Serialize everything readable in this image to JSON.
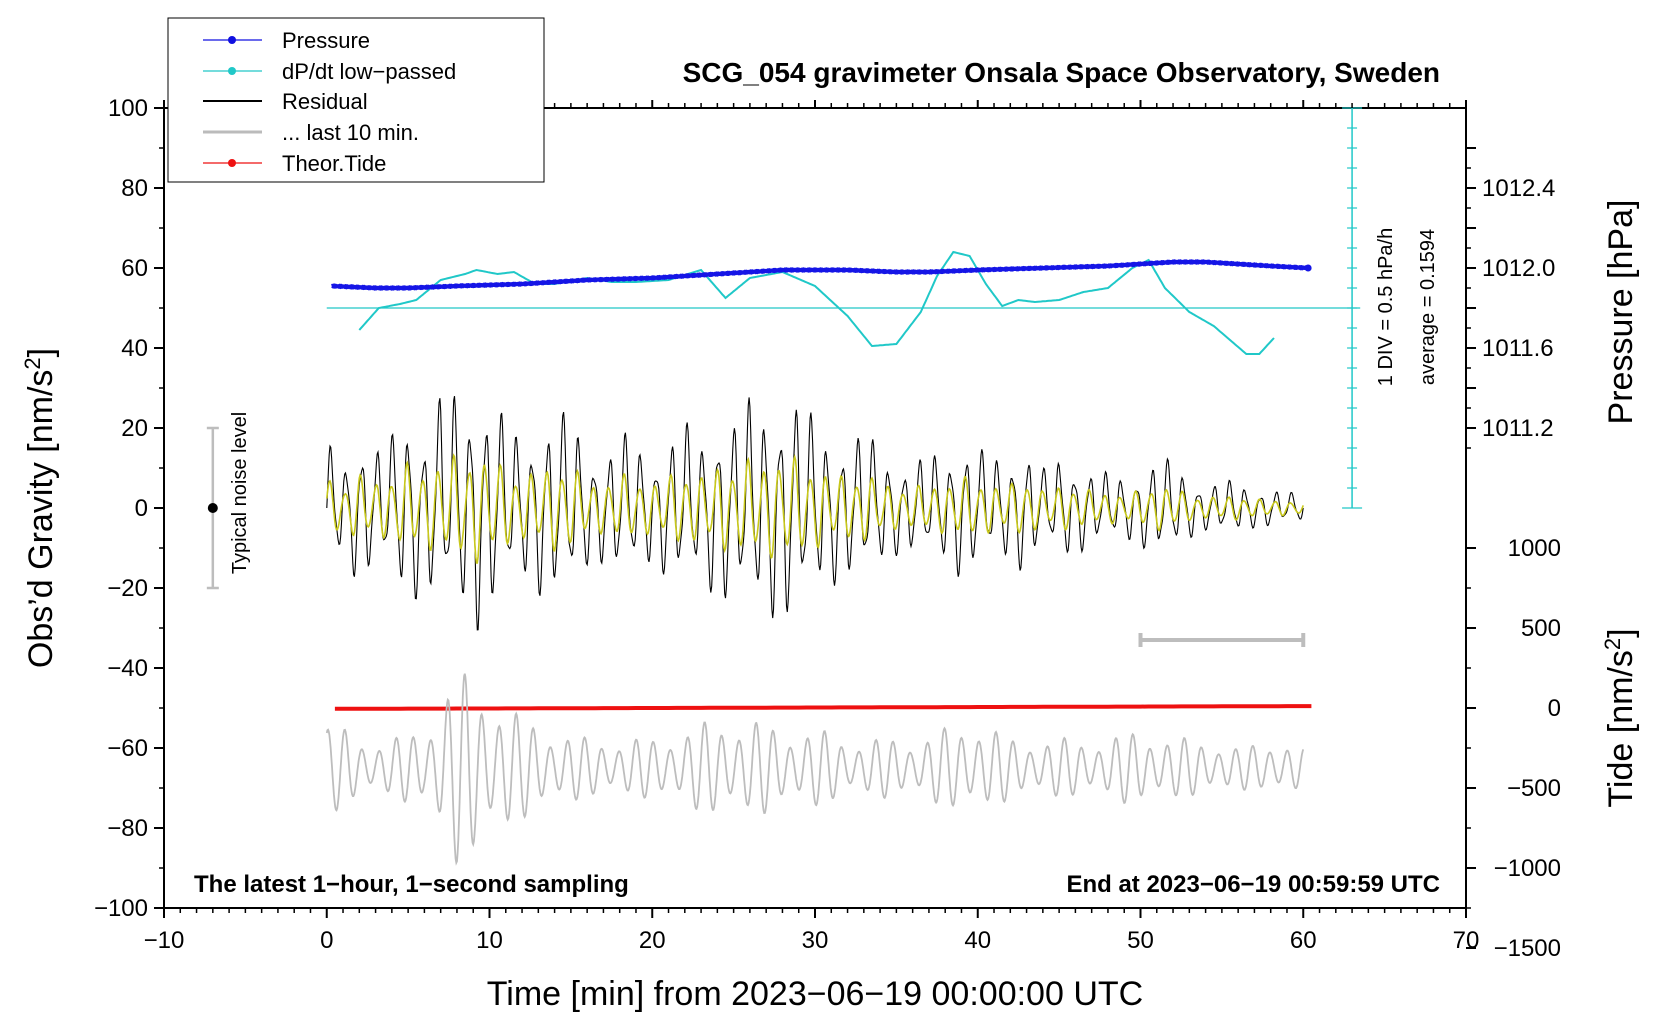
{
  "chart_data": {
    "type": "line",
    "title": "SCG_054 gravimeter Onsala Space Observatory, Sweden",
    "xlabel": "Time [min] from 2023−06−19 00:00:00 UTC",
    "xlim": [
      -10,
      70
    ],
    "x_ticks": [
      "−10",
      "0",
      "10",
      "20",
      "30",
      "40",
      "50",
      "60",
      "70"
    ],
    "left_axis": {
      "label_main": "Obs’d Gravity [nm/s",
      "label_sup": "2",
      "label_end": "]",
      "ylim": [
        -100,
        100
      ],
      "ticks": [
        "100",
        "80",
        "60",
        "40",
        "20",
        "0",
        "−20",
        "−40",
        "−60",
        "−80",
        "−100"
      ]
    },
    "pressure_axis": {
      "label": "Pressure [hPa]",
      "ticks": [
        "1012.4",
        "1012.0",
        "1011.6",
        "1011.2"
      ]
    },
    "tide_axis": {
      "label_main": "Tide [nm/s",
      "label_sup": "2",
      "label_end": "]",
      "ticks": [
        "1000",
        "500",
        "0",
        "−500",
        "−1000",
        "−1500"
      ]
    },
    "legend": {
      "position": "top-left",
      "entries": [
        "Pressure",
        "dP/dt low−passed",
        "Residual",
        "... last 10 min.",
        "Theor.Tide"
      ]
    },
    "annotations": {
      "noise_label": "Typical noise level",
      "noise_range": [
        -20,
        20
      ],
      "dpdt_scale": "1 DIV = 0.5 hPa/h",
      "dpdt_average": "average = 0.1594",
      "bottom_left": "The latest 1−hour, 1−second sampling",
      "bottom_right": "End at 2023−06−19 00:59:59 UTC"
    },
    "series": [
      {
        "name": "Pressure",
        "unit": "hPa",
        "x": [
          0.3,
          3,
          5,
          8,
          12,
          16,
          20,
          24,
          28,
          32,
          35,
          37,
          40,
          44,
          48,
          50,
          52,
          54,
          56,
          58,
          60.3
        ],
        "values": [
          1011.91,
          1011.9,
          1011.9,
          1011.91,
          1011.92,
          1011.94,
          1011.95,
          1011.97,
          1011.99,
          1011.99,
          1011.98,
          1011.98,
          1011.99,
          1012.0,
          1012.01,
          1012.02,
          1012.03,
          1012.03,
          1012.02,
          1012.01,
          1012.0
        ]
      },
      {
        "name": "dP/dt low−passed",
        "unit": "gravity-axis units (1 DIV = 0.5 hPa/h)",
        "baseline": 50,
        "x": [
          2,
          3.2,
          4.5,
          5.5,
          7,
          8.5,
          9.2,
          10.5,
          11.5,
          12.8,
          14,
          16,
          17.5,
          19,
          21,
          23,
          24.5,
          26,
          28,
          30,
          32,
          33.5,
          35,
          36.5,
          37.5,
          38.5,
          39.5,
          40.5,
          41.5,
          42.5,
          43.5,
          45,
          46.5,
          48,
          49.5,
          50.5,
          51.5,
          53,
          54.5,
          55.5,
          56.5,
          57.3,
          58.2
        ],
        "values": [
          44.5,
          50,
          51,
          52,
          57,
          58.5,
          59.5,
          58.5,
          59,
          56,
          56,
          57.5,
          56.5,
          56.5,
          57,
          59.5,
          52.5,
          57.5,
          59,
          55.5,
          48,
          40.5,
          41,
          49,
          58,
          64,
          63,
          56,
          50.5,
          52,
          51.5,
          52,
          54,
          55,
          60,
          62,
          55,
          49,
          45.5,
          42,
          38.5,
          38.5,
          42.5
        ]
      },
      {
        "name": "Residual",
        "unit": "nm/s2",
        "x": [
          0,
          1,
          2,
          3,
          4,
          5,
          6,
          7,
          7.5,
          8,
          8.5,
          9,
          9.5,
          10,
          11,
          12,
          13,
          14,
          15,
          16,
          17,
          18,
          19,
          20,
          21,
          22,
          23,
          24,
          25,
          26,
          27,
          28,
          29,
          30,
          31,
          32,
          33,
          34,
          35,
          36,
          37,
          38,
          39,
          40,
          41,
          42,
          43,
          44,
          45,
          46,
          47,
          48,
          49,
          50,
          51,
          52,
          53,
          54,
          55,
          56,
          57,
          58,
          59,
          60
        ],
        "values": [
          17,
          12,
          20,
          15,
          19,
          26,
          20,
          30,
          24,
          33,
          25,
          35,
          28,
          30,
          23,
          18,
          22,
          25,
          24,
          16,
          14,
          20,
          17,
          14,
          19,
          22,
          18,
          25,
          24,
          28,
          27,
          30,
          28,
          23,
          20,
          18,
          20,
          16,
          12,
          12,
          14,
          14,
          18,
          16,
          13,
          14,
          17,
          10,
          13,
          12,
          10,
          9,
          8,
          10,
          13,
          12,
          8,
          6,
          7,
          7,
          5,
          5,
          4,
          4
        ],
        "envelope_note": "values are approximate peak amplitudes of a roughly symmetric oscillation about 0"
      },
      {
        "name": "... last 10 min.",
        "unit": "nm/s2 (offset display, centred near −65)",
        "x": [
          0,
          2,
          4,
          6,
          7,
          8,
          9,
          10,
          11,
          12,
          14,
          16,
          18,
          20,
          22,
          24,
          26,
          28,
          30,
          32,
          34,
          36,
          38,
          40,
          42,
          44,
          46,
          48,
          50,
          52,
          54,
          56,
          58,
          60
        ],
        "values": [
          5,
          3,
          3,
          4,
          8,
          10,
          9,
          8,
          7,
          5,
          4,
          3,
          3,
          3,
          4,
          5,
          5,
          4,
          4,
          3,
          3,
          3,
          4,
          5,
          3,
          3,
          3,
          3,
          4,
          3,
          3,
          2,
          3,
          2
        ],
        "envelope_note": "values are approximate peak amplitudes (in 2.5 nm/s2 display units) of the grey trace"
      },
      {
        "name": "Theor.Tide",
        "unit": "nm/s2",
        "x": [
          0.5,
          10,
          20,
          30,
          40,
          50,
          60.5
        ],
        "values": [
          -5,
          -3,
          0,
          3,
          6,
          9,
          12
        ]
      }
    ],
    "ten_minute_bar": [
      50,
      60
    ]
  }
}
